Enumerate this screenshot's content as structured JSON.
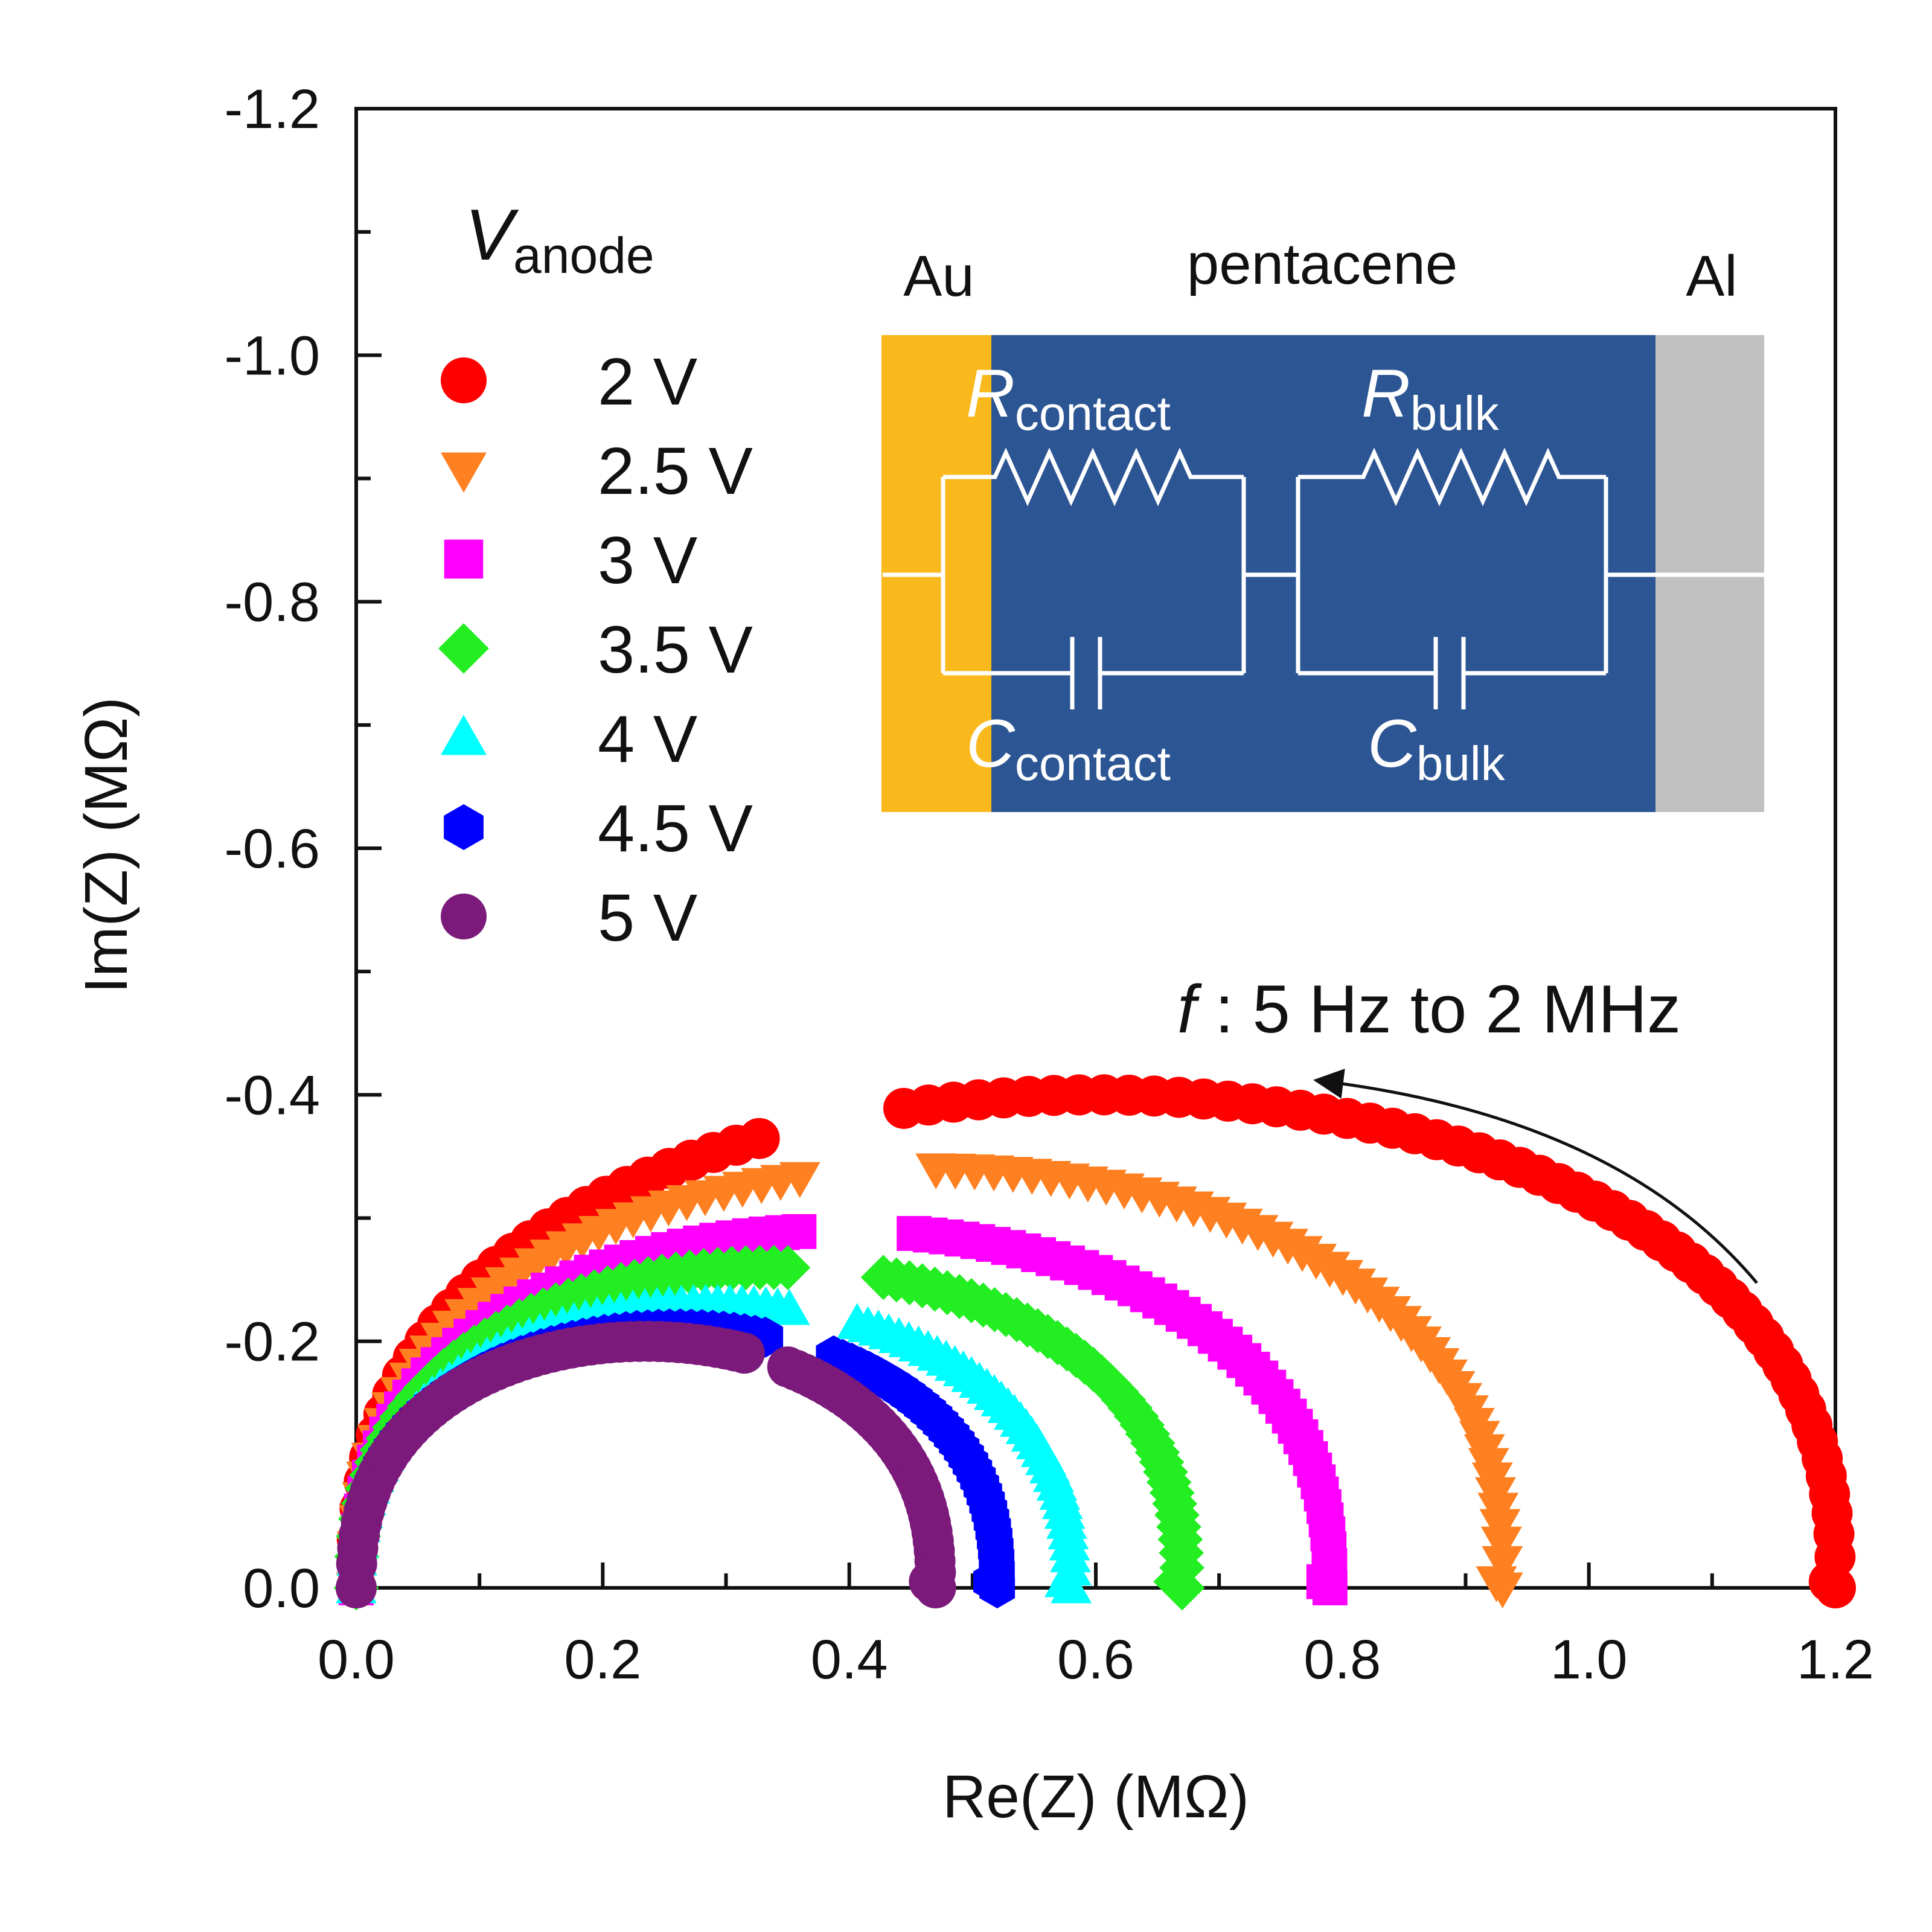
{
  "chart_data": {
    "type": "scatter",
    "title": "",
    "xlabel": "Re(Z) (MΩ)",
    "ylabel": "Im(Z) (MΩ)",
    "xlim": [
      0.0,
      1.2
    ],
    "ylim": [
      0.0,
      -1.2
    ],
    "x_ticks": [
      "0.0",
      "0.2",
      "0.4",
      "0.6",
      "0.8",
      "1.0",
      "1.2"
    ],
    "y_ticks": [
      "0.0",
      "-0.2",
      "-0.4",
      "-0.6",
      "-0.8",
      "-1.0",
      "-1.2"
    ],
    "legend_title": {
      "main": "V",
      "sub": "anode"
    },
    "annotation": {
      "italic": "f",
      "text": " : 5 Hz to 2 MHz"
    },
    "series": [
      {
        "name": "2 V",
        "marker": "circle",
        "color": "#ff0000",
        "x0": 0.6,
        "r": 0.6,
        "rf": 0.4,
        "gap": [
          0.34,
          0.43
        ]
      },
      {
        "name": "2.5 V",
        "marker": "tri-down",
        "color": "#ff8020",
        "x0": 0.465,
        "r": 0.465,
        "rf": 0.34,
        "gap": [
          0.36,
          0.46
        ]
      },
      {
        "name": "3 V",
        "marker": "square",
        "color": "#ff00ff",
        "x0": 0.395,
        "r": 0.395,
        "rf": 0.29,
        "gap": [
          0.36,
          0.44
        ]
      },
      {
        "name": "3.5 V",
        "marker": "diamond",
        "color": "#22ee22",
        "x0": 0.335,
        "r": 0.335,
        "rf": 0.26,
        "gap": [
          0.36,
          0.42
        ]
      },
      {
        "name": "4 V",
        "marker": "tri-up",
        "color": "#00ffff",
        "x0": 0.29,
        "r": 0.29,
        "rf": 0.23,
        "gap": [
          0.36,
          0.4
        ]
      },
      {
        "name": "4.5 V",
        "marker": "hexagon",
        "color": "#0000ff",
        "x0": 0.26,
        "r": 0.26,
        "rf": 0.21,
        "gap": [
          0.34,
          0.38
        ]
      },
      {
        "name": "5 V",
        "marker": "circle",
        "color": "#7b1a7b",
        "x0": 0.235,
        "r": 0.235,
        "rf": 0.2,
        "gap": [
          0.32,
          0.35
        ]
      }
    ]
  },
  "inset": {
    "labels": {
      "left": "Au",
      "middle": "pentacene",
      "right": "Al"
    },
    "r_contact": {
      "main": "R",
      "sub": "contact"
    },
    "c_contact": {
      "main": "C",
      "sub": "contact"
    },
    "r_bulk": {
      "main": "R",
      "sub": "bulk"
    },
    "c_bulk": {
      "main": "C",
      "sub": "bulk"
    },
    "colors": {
      "au": "#f9b91c",
      "pentacene": "#2c5594",
      "al": "#c0c0c0"
    }
  }
}
